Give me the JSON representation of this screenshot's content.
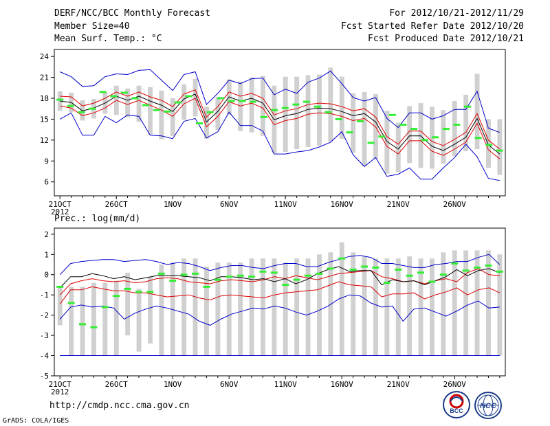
{
  "header": {
    "line1_left": "DERF/NCC/BCC Monthly Forecast",
    "line2_left": "Member Size=40",
    "line3_left": "Mean Surf. Temp.: °C",
    "line1_right": "For 2012/10/21-2012/11/29",
    "line2_right": "Fcst Started Refer Date 2012/10/20",
    "line3_right": "Fcst Produced Date 2012/10/21"
  },
  "panel2_label": "Prec.: log(mm/d)",
  "footer": {
    "url": "http://cmdp.ncc.cma.gov.cn",
    "credit": "GrADS: COLA/IGES",
    "logo_bcc_text": "BCC",
    "logo_ncc_text": "NCC"
  },
  "colors": {
    "box": "#d0d0d0",
    "obs": "#33ee33",
    "mean": "#000000",
    "spread": "#dd0000",
    "envelope": "#0000cc",
    "axis": "#000000"
  },
  "chart_data": [
    {
      "type": "line",
      "title": "Mean Surf. Temp.: °C",
      "ylabel": "°C",
      "ylim": [
        4,
        25
      ],
      "yticks": [
        6,
        9,
        12,
        15,
        18,
        21,
        24
      ],
      "xlim": [
        0.5,
        40.5
      ],
      "xtick_days": [
        1,
        6,
        11,
        16,
        21,
        26,
        31,
        36
      ],
      "xtick_labels": [
        "21OCT",
        "26OCT",
        "1NOV",
        "6NOV",
        "11NOV",
        "16NOV",
        "21NOV",
        "26NOV"
      ],
      "xtick_sublabel": "2012",
      "series": [
        {
          "name": "ensemble max",
          "values": [
            21.8,
            21.1,
            19.7,
            19.8,
            21.1,
            21.5,
            21.4,
            22.0,
            22.1,
            20.6,
            19.1,
            21.4,
            21.8,
            17.1,
            18.7,
            20.6,
            20.1,
            20.8,
            20.9,
            18.5,
            19.3,
            18.7,
            20.3,
            20.9,
            21.9,
            20.1,
            18.1,
            17.6,
            18.1,
            15.1,
            13.8,
            15.9,
            15.9,
            15.0,
            15.5,
            16.4,
            16.4,
            19.0,
            13.7,
            13.1
          ]
        },
        {
          "name": "mean + spread",
          "values": [
            18.3,
            18.2,
            16.9,
            17.3,
            18.0,
            18.9,
            18.3,
            18.9,
            18.2,
            17.7,
            16.8,
            18.6,
            19.2,
            15.3,
            16.8,
            18.9,
            18.3,
            18.7,
            18.0,
            15.6,
            16.2,
            16.5,
            17.1,
            17.3,
            17.2,
            16.8,
            16.2,
            16.5,
            15.3,
            12.5,
            11.4,
            13.3,
            13.3,
            11.8,
            11.2,
            12.1,
            13.1,
            15.8,
            12.0,
            10.7
          ]
        },
        {
          "name": "ensemble mean",
          "values": [
            17.6,
            17.4,
            16.2,
            16.6,
            17.3,
            18.3,
            17.7,
            18.3,
            17.6,
            17.0,
            16.1,
            17.9,
            18.6,
            14.6,
            16.1,
            18.2,
            17.6,
            18.0,
            17.3,
            14.9,
            15.5,
            15.8,
            16.4,
            16.6,
            16.5,
            16.1,
            15.5,
            15.8,
            14.6,
            11.8,
            10.7,
            12.6,
            12.6,
            11.1,
            10.5,
            11.4,
            12.4,
            15.1,
            11.3,
            10.0
          ]
        },
        {
          "name": "mean - spread",
          "values": [
            16.9,
            16.6,
            15.5,
            15.9,
            16.6,
            17.7,
            17.1,
            17.7,
            17.0,
            16.3,
            15.4,
            17.2,
            18.0,
            13.9,
            15.4,
            17.5,
            16.9,
            17.3,
            16.6,
            14.2,
            14.8,
            15.1,
            15.7,
            15.9,
            15.8,
            15.4,
            14.8,
            15.1,
            13.9,
            11.1,
            10.0,
            11.9,
            11.9,
            10.4,
            9.8,
            10.7,
            11.7,
            14.4,
            10.6,
            9.3
          ]
        },
        {
          "name": "ensemble min",
          "values": [
            15.0,
            15.9,
            12.7,
            12.7,
            15.4,
            14.5,
            15.6,
            15.4,
            12.7,
            12.6,
            12.2,
            14.7,
            15.1,
            12.3,
            13.2,
            16.0,
            14.1,
            14.1,
            13.3,
            10.0,
            10.0,
            10.3,
            10.5,
            11.0,
            11.7,
            13.2,
            9.9,
            8.2,
            9.5,
            6.8,
            7.1,
            8.0,
            6.4,
            6.4,
            8.0,
            9.5,
            11.4,
            9.6,
            6.5,
            6.2
          ]
        },
        {
          "name": "observation",
          "values": [
            17.8,
            16.9,
            16.0,
            16.5,
            18.9,
            18.3,
            18.8,
            18.0,
            17.0,
            16.3,
            16.1,
            17.4,
            18.3,
            14.4,
            16.0,
            18.0,
            17.6,
            17.6,
            17.5,
            15.3,
            16.3,
            16.6,
            17.1,
            17.5,
            16.8,
            16.0,
            15.0,
            13.1,
            14.7,
            11.6,
            12.5,
            15.6,
            14.2,
            13.6,
            12.0,
            12.4,
            13.6,
            14.2,
            16.8,
            12.3,
            11.3,
            10.5
          ]
        },
        {
          "name": "box upper",
          "values": [
            19.0,
            18.8,
            17.7,
            17.9,
            18.9,
            19.8,
            19.4,
            19.8,
            19.6,
            19.1,
            18.0,
            20.0,
            20.8,
            16.8,
            18.2,
            20.7,
            20.4,
            21.0,
            21.2,
            19.8,
            21.1,
            21.1,
            21.3,
            21.4,
            22.4,
            21.1,
            18.7,
            18.9,
            18.6,
            16.2,
            14.5,
            16.9,
            17.3,
            16.8,
            16.3,
            17.6,
            18.5,
            21.5,
            15.0,
            15.0
          ]
        },
        {
          "name": "box lower",
          "values": [
            16.2,
            16.0,
            14.8,
            15.1,
            15.8,
            15.6,
            15.3,
            14.6,
            12.8,
            12.1,
            12.6,
            14.9,
            15.4,
            12.2,
            13.4,
            15.6,
            13.3,
            13.1,
            12.6,
            10.1,
            10.3,
            10.7,
            11.0,
            11.2,
            11.8,
            12.2,
            10.2,
            8.3,
            9.3,
            7.2,
            7.4,
            8.7,
            8.0,
            7.9,
            8.6,
            9.7,
            10.4,
            10.7,
            8.0,
            7.0
          ]
        }
      ]
    },
    {
      "type": "line",
      "title": "Prec.: log(mm/d)",
      "ylabel": "log(mm/d)",
      "ylim": [
        -5,
        2.3
      ],
      "yticks": [
        -5,
        -4,
        -3,
        -2,
        -1,
        0,
        1,
        2
      ],
      "xlim": [
        0.5,
        40.5
      ],
      "xtick_days": [
        1,
        6,
        11,
        16,
        21,
        26,
        31,
        36
      ],
      "xtick_labels": [
        "21OCT",
        "26OCT",
        "1NOV",
        "6NOV",
        "11NOV",
        "16NOV",
        "21NOV",
        "26NOV"
      ],
      "xtick_sublabel": "2012",
      "series": [
        {
          "name": "ensemble max",
          "values": [
            0.0,
            0.55,
            0.65,
            0.7,
            0.75,
            0.75,
            0.65,
            0.7,
            0.75,
            0.65,
            0.5,
            0.6,
            0.55,
            0.4,
            0.2,
            0.35,
            0.45,
            0.45,
            0.35,
            0.3,
            0.45,
            0.55,
            0.55,
            0.4,
            0.4,
            0.6,
            0.75,
            0.9,
            0.95,
            0.85,
            0.55,
            0.55,
            0.45,
            0.35,
            0.35,
            0.5,
            0.55,
            0.65,
            0.65,
            0.85,
            1.0,
            0.5
          ]
        },
        {
          "name": "mean + spread",
          "values": [
            -1.0,
            -0.45,
            -0.3,
            -0.2,
            -0.3,
            -0.35,
            -0.3,
            -0.4,
            -0.35,
            -0.2,
            -0.15,
            -0.2,
            -0.35,
            -0.4,
            -0.45,
            -0.3,
            -0.25,
            -0.3,
            -0.35,
            -0.25,
            -0.1,
            -0.2,
            -0.05,
            -0.15,
            -0.25,
            -0.1,
            0.05,
            0.1,
            0.15,
            0.2,
            -0.1,
            -0.2,
            -0.35,
            -0.3,
            -0.45,
            -0.3,
            -0.2,
            -0.35,
            0.1,
            0.3,
            0.0,
            -0.05
          ]
        },
        {
          "name": "ensemble mean",
          "values": [
            -0.65,
            -0.1,
            -0.1,
            0.05,
            -0.05,
            -0.2,
            -0.1,
            -0.25,
            -0.15,
            -0.05,
            -0.05,
            -0.05,
            -0.1,
            -0.15,
            -0.3,
            -0.1,
            -0.1,
            -0.15,
            -0.25,
            -0.2,
            -0.35,
            -0.2,
            -0.45,
            -0.25,
            0.05,
            0.25,
            0.4,
            0.15,
            0.2,
            0.2,
            -0.5,
            -0.25,
            -0.35,
            -0.3,
            -0.5,
            -0.3,
            -0.1,
            0.25,
            -0.05,
            0.2,
            0.3,
            0.1
          ]
        },
        {
          "name": "mean - spread",
          "values": [
            -1.45,
            -0.75,
            -0.75,
            -0.6,
            -0.7,
            -0.8,
            -0.8,
            -0.9,
            -0.9,
            -1.0,
            -1.1,
            -1.05,
            -1.0,
            -1.15,
            -1.25,
            -1.05,
            -1.0,
            -1.05,
            -1.1,
            -1.15,
            -1.0,
            -0.9,
            -0.85,
            -0.8,
            -0.75,
            -0.55,
            -0.35,
            -0.5,
            -0.55,
            -0.6,
            -1.1,
            -0.95,
            -0.95,
            -0.9,
            -1.2,
            -1.0,
            -0.85,
            -0.65,
            -1.0,
            -0.75,
            -0.65,
            -0.9
          ]
        },
        {
          "name": "ensemble min",
          "values": [
            -2.2,
            -1.6,
            -1.5,
            -1.6,
            -1.55,
            -1.65,
            -2.2,
            -1.9,
            -1.7,
            -1.55,
            -1.65,
            -1.8,
            -1.95,
            -2.3,
            -2.5,
            -2.2,
            -1.95,
            -1.8,
            -1.65,
            -1.7,
            -1.55,
            -1.65,
            -1.85,
            -2.0,
            -1.8,
            -1.55,
            -1.2,
            -1.0,
            -1.05,
            -1.4,
            -1.6,
            -1.55,
            -2.3,
            -1.7,
            -1.65,
            -1.85,
            -2.05,
            -1.8,
            -1.5,
            -1.3,
            -1.65,
            -1.6
          ]
        },
        {
          "name": "observation",
          "values": [
            -0.6,
            -1.4,
            -2.45,
            -2.6,
            -1.6,
            -1.05,
            -0.7,
            -0.85,
            -0.85,
            0.05,
            -0.3,
            0.0,
            0.05,
            -0.6,
            -0.25,
            -0.1,
            -0.05,
            -0.1,
            0.15,
            0.1,
            -0.5,
            -0.25,
            -0.05,
            0.05,
            0.3,
            0.8,
            0.25,
            0.4,
            0.35,
            -0.4,
            0.25,
            -0.05,
            0.1,
            -0.35,
            0.0,
            0.55,
            0.2,
            0.35,
            0.45,
            0.15
          ]
        },
        {
          "name": "box upper",
          "values": [
            -0.6,
            -0.6,
            -0.6,
            -0.4,
            -0.4,
            -0.3,
            0.1,
            -0.7,
            -0.1,
            0.5,
            0.6,
            0.8,
            0.8,
            0.4,
            0.6,
            0.6,
            0.6,
            0.8,
            0.8,
            0.8,
            0.6,
            0.8,
            0.8,
            1.0,
            1.1,
            1.6,
            1.1,
            0.9,
            0.8,
            0.8,
            0.8,
            0.9,
            0.8,
            0.8,
            1.1,
            1.2,
            1.2,
            1.2,
            1.2,
            1.0
          ]
        },
        {
          "name": "box lower",
          "values": [
            -2.5,
            -4.0,
            -4.0,
            -4.0,
            -4.0,
            -4.0,
            -3.0,
            -3.8,
            -3.4,
            -4.0,
            -4.0,
            -4.0,
            -4.0,
            -4.0,
            -4.0,
            -4.0,
            -4.0,
            -4.0,
            -4.0,
            -4.0,
            -4.0,
            -4.0,
            -4.0,
            -4.0,
            -4.0,
            -4.0,
            -4.0,
            -4.0,
            -4.0,
            -4.0,
            -4.0,
            -4.0,
            -4.0,
            -4.0,
            -4.0,
            -4.0,
            -4.0,
            -4.0,
            -4.0,
            -4.0
          ]
        },
        {
          "name": "lower floor",
          "values": [
            -4.0,
            -4.0
          ]
        }
      ]
    }
  ]
}
